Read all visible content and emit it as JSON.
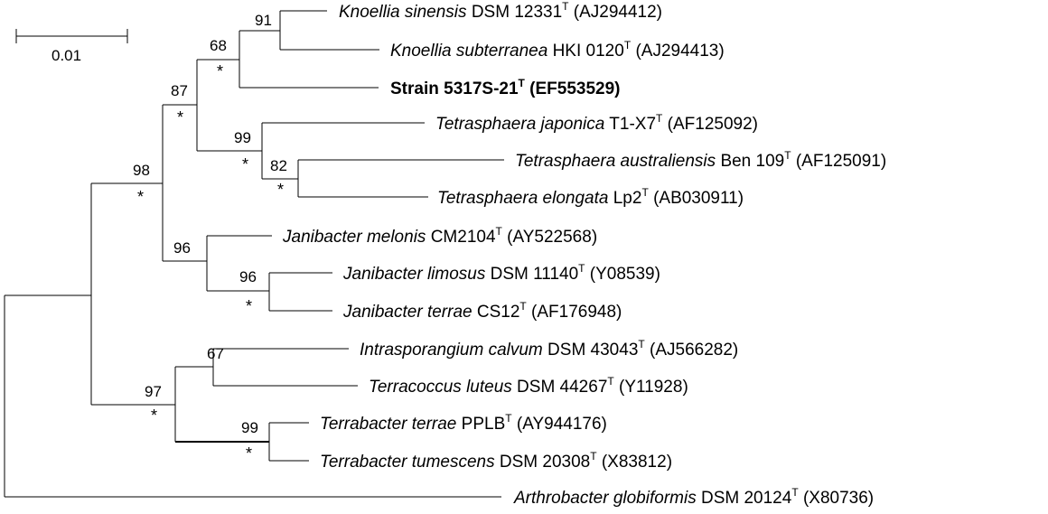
{
  "scale_bar": {
    "label": "0.01"
  },
  "taxa": [
    {
      "id": "t1",
      "genus": "Knoellia sinensis",
      "strain": "DSM 12331",
      "type_mark": "T",
      "accession": "(AJ294412)"
    },
    {
      "id": "t2",
      "genus": "Knoellia subterranea",
      "strain": "HKI 0120",
      "type_mark": "T",
      "accession": "(AJ294413)"
    },
    {
      "id": "t3",
      "genus": "",
      "strain": "Strain 5317S-21",
      "type_mark": "T",
      "accession": "(EF553529)",
      "bold": true
    },
    {
      "id": "t4",
      "genus": "Tetrasphaera japonica",
      "strain": "T1-X7",
      "type_mark": "T",
      "accession": "(AF125092)"
    },
    {
      "id": "t5",
      "genus": "Tetrasphaera australiensis",
      "strain": "Ben 109",
      "type_mark": "T",
      "accession": "(AF125091)"
    },
    {
      "id": "t6",
      "genus": "Tetrasphaera elongata",
      "strain": "Lp2",
      "type_mark": "T",
      "accession": "(AB030911)"
    },
    {
      "id": "t7",
      "genus": "Janibacter melonis",
      "strain": "CM2104",
      "type_mark": "T",
      "accession": "(AY522568)"
    },
    {
      "id": "t8",
      "genus": "Janibacter limosus",
      "strain": "DSM 11140",
      "type_mark": "T",
      "accession": "(Y08539)"
    },
    {
      "id": "t9",
      "genus": "Janibacter terrae",
      "strain": "CS12",
      "type_mark": "T",
      "accession": "(AF176948)"
    },
    {
      "id": "t10",
      "genus": "Intrasporangium calvum",
      "strain": "DSM 43043",
      "type_mark": "T",
      "accession": "(AJ566282)"
    },
    {
      "id": "t11",
      "genus": "Terracoccus luteus",
      "strain": "DSM 44267",
      "type_mark": "T",
      "accession": "(Y11928)"
    },
    {
      "id": "t12",
      "genus": "Terrabacter terrae",
      "strain": "PPLB",
      "type_mark": "T",
      "accession": "(AY944176)"
    },
    {
      "id": "t13",
      "genus": "Terrabacter tumescens",
      "strain": "DSM 20308",
      "type_mark": "T",
      "accession": "(X83812)"
    },
    {
      "id": "t14",
      "genus": "Arthrobacter globiformis",
      "strain": "DSM 20124",
      "type_mark": "T",
      "accession": "(X80736)"
    }
  ],
  "bootstrap": {
    "n91": "91",
    "n68": "68",
    "n87": "87",
    "n99a": "99",
    "n82": "82",
    "n98": "98",
    "n96a": "96",
    "n96b": "96",
    "n67": "67",
    "n97": "97",
    "n99b": "99"
  },
  "asterisk": "*"
}
